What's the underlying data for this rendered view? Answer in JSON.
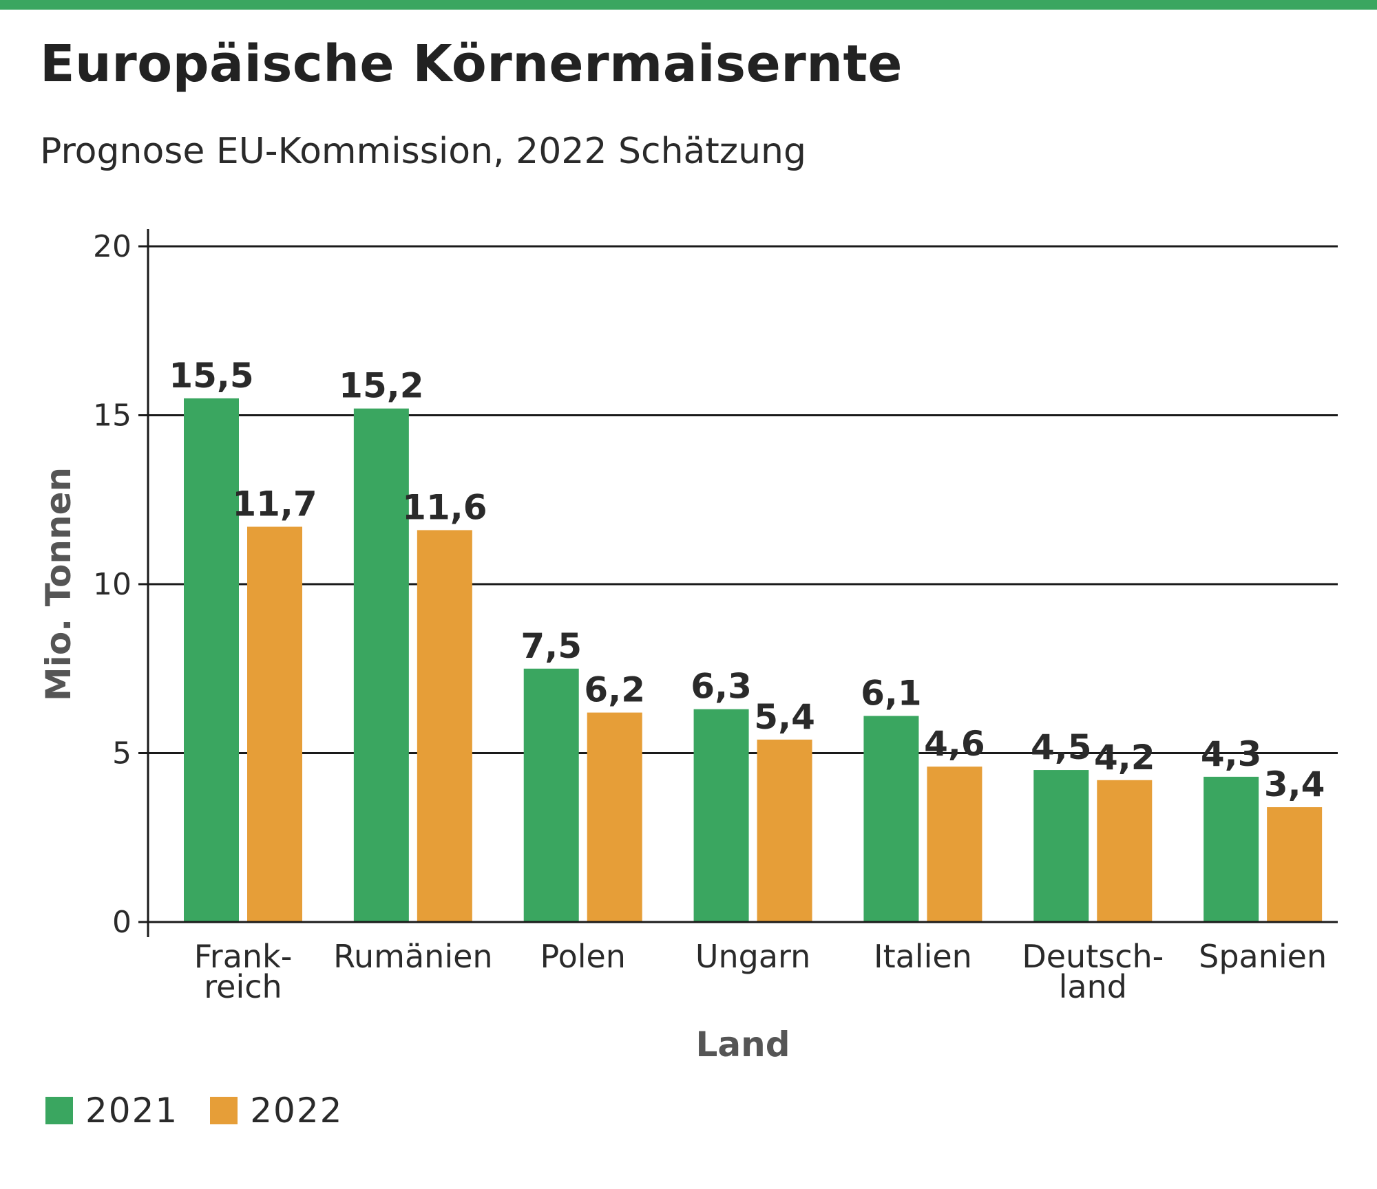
{
  "header": {
    "title": "Europäische Körnermaisernte",
    "subtitle": "Prognose EU-Kommission, 2022 Schätzung"
  },
  "colors": {
    "accent_bar": "#3aa660",
    "series_2021": "#3aa660",
    "series_2022": "#e69e38"
  },
  "chart_data": {
    "type": "bar",
    "title": "Europäische Körnermaisernte",
    "subtitle": "Prognose EU-Kommission, 2022 Schätzung",
    "xlabel": "Land",
    "ylabel": "Mio. Tonnen",
    "ylim": [
      0,
      20
    ],
    "yticks": [
      0,
      5,
      10,
      15,
      20
    ],
    "grid": true,
    "legend_position": "bottom-left",
    "categories": [
      [
        "Frank-",
        "reich"
      ],
      [
        "Rumänien"
      ],
      [
        "Polen"
      ],
      [
        "Ungarn"
      ],
      [
        "Italien"
      ],
      [
        "Deutsch-",
        "land"
      ],
      [
        "Spanien"
      ]
    ],
    "series": [
      {
        "name": "2021",
        "color": "#3aa660",
        "values": [
          15.5,
          15.2,
          7.5,
          6.3,
          6.1,
          4.5,
          4.3
        ],
        "labels": [
          "15,5",
          "15,2",
          "7,5",
          "6,3",
          "6,1",
          "4,5",
          "4,3"
        ]
      },
      {
        "name": "2022",
        "color": "#e69e38",
        "values": [
          11.7,
          11.6,
          6.2,
          5.4,
          4.6,
          4.2,
          3.4
        ],
        "labels": [
          "11,7",
          "11,6",
          "6,2",
          "5,4",
          "4,6",
          "4,2",
          "3,4"
        ]
      }
    ]
  }
}
